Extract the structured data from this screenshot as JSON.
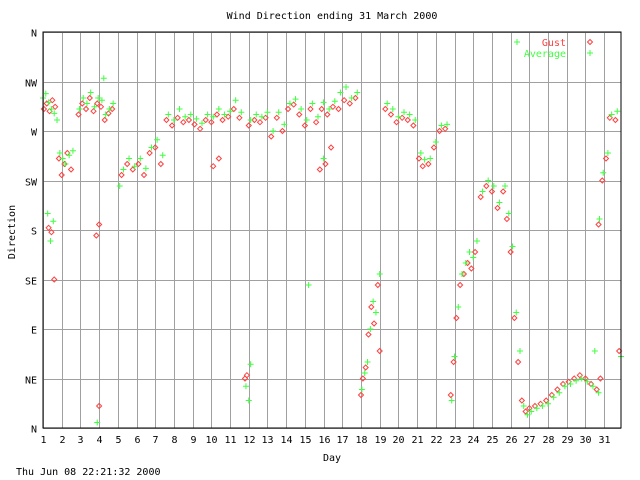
{
  "chart_data": {
    "type": "scatter",
    "title": "Wind Direction ending 31 March 2000",
    "xlabel": "Day",
    "ylabel": "Direction",
    "timestamp": "Thu Jun 08 22:21:32 2000",
    "xlim": [
      1,
      31.9
    ],
    "ylim": [
      0,
      360
    ],
    "x_ticks": [
      1,
      2,
      3,
      4,
      5,
      6,
      7,
      8,
      9,
      10,
      11,
      12,
      13,
      14,
      15,
      16,
      17,
      18,
      19,
      20,
      21,
      22,
      23,
      24,
      25,
      26,
      27,
      28,
      29,
      30,
      31
    ],
    "y_ticks": [
      {
        "label": "N",
        "value": 0
      },
      {
        "label": "NE",
        "value": 45
      },
      {
        "label": "E",
        "value": 90
      },
      {
        "label": "SE",
        "value": 135
      },
      {
        "label": "S",
        "value": 180
      },
      {
        "label": "SW",
        "value": 225
      },
      {
        "label": "W",
        "value": 270
      },
      {
        "label": "NW",
        "value": 315
      },
      {
        "label": "N",
        "value": 360
      }
    ],
    "grid": true,
    "legend_position": "top-right",
    "series": [
      {
        "name": "Gust",
        "color": "#ff4040",
        "marker": "diamond",
        "points": [
          [
            1.05,
            290
          ],
          [
            1.2,
            295
          ],
          [
            1.35,
            288
          ],
          [
            1.5,
            298
          ],
          [
            1.65,
            292
          ],
          [
            1.3,
            182
          ],
          [
            1.45,
            178
          ],
          [
            1.6,
            135
          ],
          [
            1.85,
            245
          ],
          [
            2.0,
            230
          ],
          [
            2.15,
            240
          ],
          [
            2.3,
            250
          ],
          [
            2.5,
            235
          ],
          [
            2.9,
            285
          ],
          [
            3.1,
            295
          ],
          [
            3.3,
            290
          ],
          [
            3.5,
            300
          ],
          [
            3.7,
            288
          ],
          [
            3.9,
            295
          ],
          [
            4.1,
            292
          ],
          [
            4.3,
            280
          ],
          [
            4.5,
            286
          ],
          [
            4.7,
            290
          ],
          [
            3.85,
            175
          ],
          [
            4.0,
            185
          ],
          [
            4.0,
            20
          ],
          [
            5.2,
            230
          ],
          [
            5.5,
            240
          ],
          [
            5.8,
            235
          ],
          [
            6.1,
            240
          ],
          [
            6.4,
            230
          ],
          [
            6.7,
            250
          ],
          [
            7.0,
            255
          ],
          [
            7.3,
            240
          ],
          [
            7.6,
            280
          ],
          [
            7.9,
            275
          ],
          [
            8.2,
            282
          ],
          [
            8.5,
            278
          ],
          [
            8.8,
            280
          ],
          [
            9.1,
            276
          ],
          [
            9.4,
            272
          ],
          [
            9.7,
            280
          ],
          [
            10.0,
            278
          ],
          [
            10.3,
            285
          ],
          [
            10.6,
            280
          ],
          [
            10.9,
            283
          ],
          [
            11.2,
            290
          ],
          [
            11.5,
            282
          ],
          [
            10.1,
            238
          ],
          [
            10.4,
            245
          ],
          [
            11.8,
            45
          ],
          [
            11.9,
            48
          ],
          [
            12.0,
            275
          ],
          [
            12.3,
            280
          ],
          [
            12.6,
            278
          ],
          [
            12.9,
            282
          ],
          [
            13.2,
            265
          ],
          [
            13.5,
            282
          ],
          [
            13.8,
            270
          ],
          [
            14.1,
            290
          ],
          [
            14.4,
            294
          ],
          [
            14.7,
            285
          ],
          [
            15.0,
            275
          ],
          [
            15.3,
            290
          ],
          [
            15.6,
            278
          ],
          [
            15.9,
            290
          ],
          [
            16.2,
            285
          ],
          [
            16.5,
            292
          ],
          [
            16.8,
            290
          ],
          [
            17.1,
            298
          ],
          [
            17.4,
            295
          ],
          [
            17.7,
            300
          ],
          [
            15.8,
            235
          ],
          [
            16.1,
            240
          ],
          [
            16.4,
            255
          ],
          [
            18.0,
            30
          ],
          [
            18.1,
            45
          ],
          [
            18.25,
            55
          ],
          [
            18.4,
            85
          ],
          [
            18.55,
            110
          ],
          [
            18.7,
            95
          ],
          [
            18.9,
            130
          ],
          [
            19.0,
            70
          ],
          [
            19.3,
            290
          ],
          [
            19.6,
            285
          ],
          [
            19.9,
            278
          ],
          [
            20.2,
            282
          ],
          [
            20.5,
            280
          ],
          [
            20.8,
            275
          ],
          [
            21.1,
            245
          ],
          [
            21.3,
            238
          ],
          [
            21.6,
            240
          ],
          [
            21.9,
            255
          ],
          [
            22.2,
            270
          ],
          [
            22.5,
            272
          ],
          [
            22.8,
            30
          ],
          [
            22.95,
            60
          ],
          [
            23.1,
            100
          ],
          [
            23.3,
            130
          ],
          [
            23.5,
            140
          ],
          [
            23.7,
            150
          ],
          [
            23.9,
            145
          ],
          [
            24.1,
            160
          ],
          [
            24.4,
            210
          ],
          [
            24.7,
            220
          ],
          [
            25.0,
            215
          ],
          [
            25.3,
            200
          ],
          [
            25.6,
            215
          ],
          [
            25.8,
            190
          ],
          [
            26.0,
            160
          ],
          [
            26.2,
            100
          ],
          [
            26.4,
            60
          ],
          [
            26.6,
            25
          ],
          [
            26.8,
            15
          ],
          [
            27.0,
            18
          ],
          [
            27.3,
            20
          ],
          [
            27.6,
            22
          ],
          [
            27.9,
            25
          ],
          [
            28.2,
            30
          ],
          [
            28.5,
            35
          ],
          [
            28.8,
            40
          ],
          [
            29.1,
            42
          ],
          [
            29.4,
            45
          ],
          [
            29.7,
            48
          ],
          [
            30.0,
            45
          ],
          [
            30.3,
            40
          ],
          [
            30.6,
            35
          ],
          [
            30.8,
            45
          ],
          [
            30.7,
            185
          ],
          [
            30.9,
            225
          ],
          [
            31.1,
            245
          ],
          [
            31.3,
            282
          ],
          [
            31.6,
            280
          ],
          [
            31.8,
            70
          ]
        ]
      },
      {
        "name": "Average",
        "color": "#40ff40",
        "marker": "plus",
        "points": [
          [
            1.0,
            300
          ],
          [
            1.15,
            304
          ],
          [
            1.3,
            296
          ],
          [
            1.45,
            290
          ],
          [
            1.6,
            286
          ],
          [
            1.75,
            280
          ],
          [
            1.25,
            195
          ],
          [
            1.4,
            170
          ],
          [
            1.55,
            188
          ],
          [
            1.9,
            250
          ],
          [
            2.05,
            245
          ],
          [
            2.2,
            240
          ],
          [
            2.4,
            248
          ],
          [
            2.6,
            252
          ],
          [
            2.95,
            290
          ],
          [
            3.15,
            300
          ],
          [
            3.35,
            295
          ],
          [
            3.55,
            305
          ],
          [
            3.75,
            292
          ],
          [
            3.95,
            300
          ],
          [
            4.15,
            298
          ],
          [
            4.35,
            285
          ],
          [
            4.55,
            290
          ],
          [
            4.75,
            295
          ],
          [
            4.25,
            318
          ],
          [
            3.9,
            5
          ],
          [
            5.1,
            220
          ],
          [
            5.3,
            235
          ],
          [
            5.6,
            245
          ],
          [
            5.9,
            238
          ],
          [
            6.2,
            245
          ],
          [
            6.5,
            236
          ],
          [
            6.8,
            255
          ],
          [
            7.1,
            262
          ],
          [
            7.4,
            248
          ],
          [
            7.7,
            285
          ],
          [
            8.0,
            280
          ],
          [
            8.3,
            290
          ],
          [
            8.6,
            283
          ],
          [
            8.9,
            285
          ],
          [
            9.2,
            281
          ],
          [
            9.5,
            277
          ],
          [
            9.8,
            285
          ],
          [
            10.1,
            283
          ],
          [
            10.4,
            290
          ],
          [
            10.7,
            285
          ],
          [
            11.0,
            288
          ],
          [
            11.3,
            298
          ],
          [
            11.6,
            287
          ],
          [
            11.85,
            38
          ],
          [
            12.0,
            25
          ],
          [
            12.1,
            58
          ],
          [
            12.1,
            280
          ],
          [
            12.4,
            285
          ],
          [
            12.7,
            283
          ],
          [
            13.0,
            287
          ],
          [
            13.3,
            270
          ],
          [
            13.6,
            287
          ],
          [
            13.9,
            276
          ],
          [
            14.2,
            295
          ],
          [
            14.5,
            299
          ],
          [
            14.8,
            290
          ],
          [
            15.1,
            280
          ],
          [
            15.4,
            295
          ],
          [
            15.7,
            283
          ],
          [
            16.0,
            296
          ],
          [
            16.3,
            290
          ],
          [
            16.6,
            297
          ],
          [
            16.9,
            305
          ],
          [
            17.2,
            310
          ],
          [
            17.5,
            300
          ],
          [
            17.8,
            305
          ],
          [
            15.2,
            130
          ],
          [
            16.0,
            245
          ],
          [
            18.05,
            35
          ],
          [
            18.2,
            50
          ],
          [
            18.35,
            60
          ],
          [
            18.5,
            90
          ],
          [
            18.65,
            115
          ],
          [
            18.8,
            105
          ],
          [
            19.0,
            140
          ],
          [
            19.4,
            295
          ],
          [
            19.7,
            290
          ],
          [
            20.0,
            283
          ],
          [
            20.3,
            287
          ],
          [
            20.6,
            285
          ],
          [
            20.9,
            280
          ],
          [
            21.2,
            250
          ],
          [
            21.4,
            244
          ],
          [
            21.7,
            245
          ],
          [
            22.0,
            260
          ],
          [
            22.3,
            275
          ],
          [
            22.6,
            276
          ],
          [
            22.85,
            25
          ],
          [
            23.0,
            65
          ],
          [
            23.2,
            110
          ],
          [
            23.4,
            140
          ],
          [
            23.6,
            150
          ],
          [
            23.8,
            160
          ],
          [
            24.0,
            155
          ],
          [
            24.2,
            170
          ],
          [
            24.5,
            215
          ],
          [
            24.8,
            225
          ],
          [
            25.1,
            220
          ],
          [
            25.4,
            205
          ],
          [
            25.7,
            220
          ],
          [
            25.9,
            195
          ],
          [
            26.1,
            165
          ],
          [
            26.3,
            105
          ],
          [
            26.5,
            70
          ],
          [
            26.7,
            20
          ],
          [
            26.9,
            12
          ],
          [
            27.1,
            15
          ],
          [
            27.4,
            18
          ],
          [
            27.7,
            20
          ],
          [
            28.0,
            22
          ],
          [
            28.3,
            28
          ],
          [
            28.6,
            32
          ],
          [
            28.9,
            38
          ],
          [
            29.2,
            40
          ],
          [
            29.5,
            43
          ],
          [
            29.8,
            45
          ],
          [
            30.1,
            42
          ],
          [
            30.4,
            38
          ],
          [
            30.5,
            70
          ],
          [
            30.7,
            32
          ],
          [
            30.75,
            190
          ],
          [
            30.95,
            232
          ],
          [
            31.2,
            250
          ],
          [
            31.4,
            285
          ],
          [
            31.7,
            288
          ],
          [
            31.9,
            65
          ]
        ]
      }
    ]
  }
}
